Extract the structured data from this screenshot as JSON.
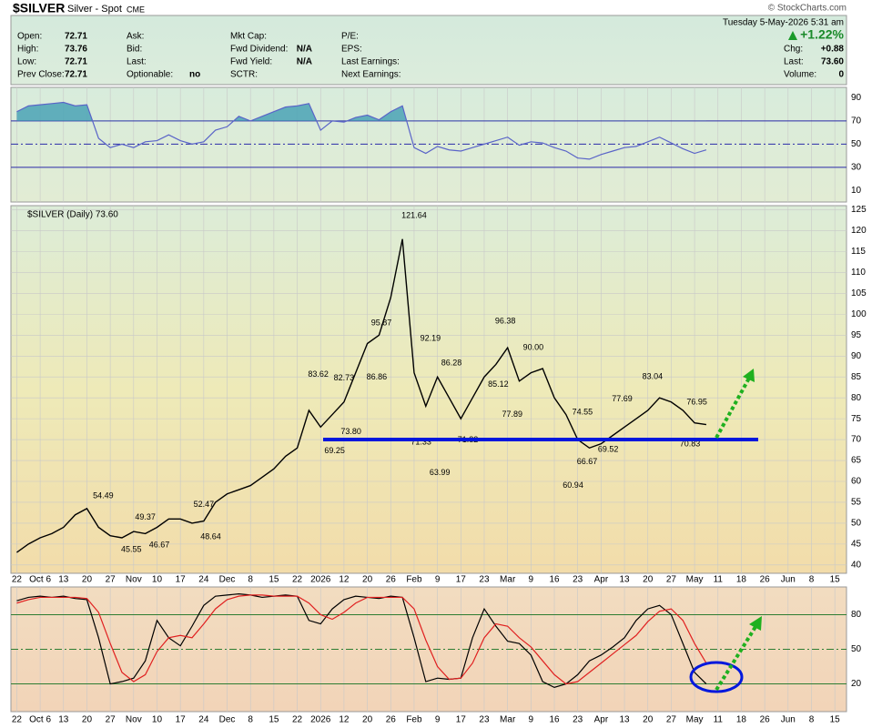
{
  "header": {
    "symbol": "$SILVER",
    "name": "Silver - Spot",
    "exchange": "CME",
    "date": "Tuesday  5-May-2026  5:31 am",
    "brand": "© StockCharts.com",
    "change_pct": "+1.22%",
    "columns": [
      [
        [
          "Open:",
          "72.71"
        ],
        [
          "High:",
          "73.76"
        ],
        [
          "Low:",
          "72.71"
        ],
        [
          "Prev Close:",
          "72.71"
        ]
      ],
      [
        [
          "Ask:",
          ""
        ],
        [
          "Bid:",
          ""
        ],
        [
          "Last:",
          ""
        ],
        [
          "Optionable:",
          "no"
        ]
      ],
      [
        [
          "Mkt Cap:",
          ""
        ],
        [
          "Fwd Dividend:",
          "N/A"
        ],
        [
          "Fwd Yield:",
          "N/A"
        ],
        [
          "SCTR:",
          ""
        ]
      ],
      [
        [
          "P/E:",
          ""
        ],
        [
          "EPS:",
          ""
        ],
        [
          "Last Earnings:",
          ""
        ],
        [
          "Next Earnings:",
          ""
        ]
      ],
      [
        [
          "",
          ""
        ],
        [
          "Chg:",
          "+0.88"
        ],
        [
          "Last:",
          "73.60"
        ],
        [
          "Volume:",
          "0"
        ]
      ]
    ]
  },
  "chart_data": [
    {
      "type": "line",
      "x": [
        0,
        0.5,
        1,
        1.5,
        2,
        2.5,
        3,
        3.5,
        4,
        4.5,
        5,
        5.5,
        6,
        6.5,
        7,
        7.5,
        8,
        8.5,
        9,
        9.5,
        10,
        10.5,
        11,
        11.5,
        12,
        12.5,
        13,
        13.5,
        14,
        14.5,
        15,
        15.5,
        16,
        16.5,
        17,
        17.5,
        18,
        18.5,
        19,
        19.5,
        20,
        20.5,
        21,
        21.5,
        22,
        22.5,
        23,
        23.5,
        24,
        24.5,
        25,
        25.5,
        26,
        26.5,
        27,
        27.5,
        28,
        28.5,
        29,
        29.5
      ],
      "series": [
        {
          "color": "#5a64c8",
          "values": [
            78,
            83,
            84,
            85,
            86,
            83,
            84,
            55,
            47,
            50,
            47,
            52,
            53,
            58,
            53,
            50,
            52,
            62,
            65,
            74,
            70,
            74,
            78,
            82,
            83,
            85,
            62,
            70,
            69,
            73,
            75,
            71,
            78,
            83,
            47,
            42,
            48,
            45,
            44,
            47,
            50,
            53,
            56,
            49,
            52,
            51,
            47,
            44,
            38,
            37,
            41,
            44,
            47,
            48,
            52,
            56,
            51,
            46,
            42,
            45
          ]
        }
      ],
      "ylim": [
        0,
        99
      ],
      "yticks": [
        10,
        30,
        50,
        70,
        90
      ],
      "hlines": [
        {
          "value": 70,
          "style": "solid"
        },
        {
          "value": 50,
          "style": "dashdot"
        },
        {
          "value": 30,
          "style": "solid"
        }
      ],
      "fill_above": 70,
      "fill_color": "#4aa3b5"
    },
    {
      "type": "line",
      "legend": "$SILVER (Daily) 73.60",
      "x": [
        0,
        0.5,
        1,
        1.5,
        2,
        2.5,
        3,
        3.5,
        4,
        4.5,
        5,
        5.5,
        6,
        6.5,
        7,
        7.5,
        8,
        8.5,
        9,
        9.5,
        10,
        10.5,
        11,
        11.5,
        12,
        12.5,
        13,
        13.5,
        14,
        14.5,
        15,
        15.5,
        16,
        16.5,
        17,
        17.5,
        18,
        18.5,
        19,
        19.5,
        20,
        20.5,
        21,
        21.5,
        22,
        22.5,
        23,
        23.5,
        24,
        24.5,
        25,
        25.5,
        26,
        26.5,
        27,
        27.5,
        28,
        28.5,
        29,
        29.5
      ],
      "series": [
        {
          "color": "#000000",
          "values": [
            43,
            45,
            46.5,
            47.5,
            49,
            52,
            53.5,
            49,
            47,
            46.5,
            48,
            47.5,
            49,
            51,
            51,
            50,
            50.5,
            55,
            57,
            58,
            59,
            61,
            63,
            66,
            68,
            77,
            73,
            76,
            79,
            86,
            93,
            95,
            104,
            118,
            86,
            78,
            85,
            80,
            75,
            80,
            85,
            88,
            92,
            84,
            86,
            87,
            80,
            76,
            70,
            68,
            69,
            71,
            73,
            75,
            77,
            80,
            79,
            77,
            74,
            73.6
          ]
        }
      ],
      "ylim": [
        38,
        126
      ],
      "yticks": [
        40,
        45,
        50,
        55,
        60,
        65,
        70,
        75,
        80,
        85,
        90,
        95,
        100,
        105,
        110,
        115,
        120,
        125
      ],
      "grid": true,
      "xlim": [
        -0.25,
        35.5
      ],
      "xticks": [
        {
          "value": 0,
          "label": "22"
        },
        {
          "value": 1,
          "label": "Oct 6"
        },
        {
          "value": 2,
          "label": "13"
        },
        {
          "value": 3,
          "label": "20"
        },
        {
          "value": 4,
          "label": "27"
        },
        {
          "value": 5,
          "label": "Nov"
        },
        {
          "value": 6,
          "label": "10"
        },
        {
          "value": 7,
          "label": "17"
        },
        {
          "value": 8,
          "label": "24"
        },
        {
          "value": 9,
          "label": "Dec"
        },
        {
          "value": 10,
          "label": "8"
        },
        {
          "value": 11,
          "label": "15"
        },
        {
          "value": 12,
          "label": "22"
        },
        {
          "value": 13,
          "label": "2026"
        },
        {
          "value": 14,
          "label": "12"
        },
        {
          "value": 15,
          "label": "20"
        },
        {
          "value": 16,
          "label": "26"
        },
        {
          "value": 17,
          "label": "Feb"
        },
        {
          "value": 18,
          "label": "9"
        },
        {
          "value": 19,
          "label": "17"
        },
        {
          "value": 20,
          "label": "23"
        },
        {
          "value": 21,
          "label": "Mar"
        },
        {
          "value": 22,
          "label": "9"
        },
        {
          "value": 23,
          "label": "16"
        },
        {
          "value": 24,
          "label": "23"
        },
        {
          "value": 25,
          "label": "Apr"
        },
        {
          "value": 26,
          "label": "13"
        },
        {
          "value": 27,
          "label": "20"
        },
        {
          "value": 28,
          "label": "27"
        },
        {
          "value": 29,
          "label": "May"
        },
        {
          "value": 30,
          "label": "11"
        },
        {
          "value": 31,
          "label": "18"
        },
        {
          "value": 32,
          "label": "26"
        },
        {
          "value": 33,
          "label": "Jun"
        },
        {
          "value": 34,
          "label": "8"
        },
        {
          "value": 35,
          "label": "15"
        }
      ],
      "annotations": [
        {
          "label": "54.49",
          "value": 54.49,
          "x": 3.7,
          "side": "top"
        },
        {
          "label": "49.37",
          "value": 49.37,
          "x": 5.5,
          "side": "top"
        },
        {
          "label": "45.55",
          "value": 45.55,
          "x": 4.9,
          "side": "bottom"
        },
        {
          "label": "46.67",
          "value": 46.67,
          "x": 6.1,
          "side": "bottom"
        },
        {
          "label": "52.47",
          "value": 52.47,
          "x": 8.0,
          "side": "top"
        },
        {
          "label": "48.64",
          "value": 48.64,
          "x": 8.3,
          "side": "bottom"
        },
        {
          "label": "83.62",
          "value": 83.62,
          "x": 12.9,
          "side": "top"
        },
        {
          "label": "82.73",
          "value": 82.73,
          "x": 14.0,
          "side": "top"
        },
        {
          "label": "73.80",
          "value": 73.8,
          "x": 14.3,
          "side": "bottom"
        },
        {
          "label": "69.25",
          "value": 69.25,
          "x": 13.6,
          "side": "bottom"
        },
        {
          "label": "86.86",
          "value": 86.86,
          "x": 15.4,
          "side": "bottom"
        },
        {
          "label": "95.87",
          "value": 95.87,
          "x": 15.6,
          "side": "top"
        },
        {
          "label": "121.64",
          "value": 121.64,
          "x": 17.0,
          "side": "top"
        },
        {
          "label": "92.19",
          "value": 92.19,
          "x": 17.7,
          "side": "top"
        },
        {
          "label": "71.33",
          "value": 71.33,
          "x": 17.3,
          "side": "bottom"
        },
        {
          "label": "63.99",
          "value": 63.99,
          "x": 18.1,
          "side": "bottom"
        },
        {
          "label": "86.28",
          "value": 86.28,
          "x": 18.6,
          "side": "top"
        },
        {
          "label": "71.82",
          "value": 71.82,
          "x": 19.3,
          "side": "bottom"
        },
        {
          "label": "85.12",
          "value": 85.12,
          "x": 20.6,
          "side": "bottom"
        },
        {
          "label": "96.38",
          "value": 96.38,
          "x": 20.9,
          "side": "top"
        },
        {
          "label": "77.89",
          "value": 77.89,
          "x": 21.2,
          "side": "bottom"
        },
        {
          "label": "90.00",
          "value": 90,
          "x": 22.1,
          "side": "top"
        },
        {
          "label": "74.55",
          "value": 74.55,
          "x": 24.2,
          "side": "top"
        },
        {
          "label": "66.67",
          "value": 66.67,
          "x": 24.4,
          "side": "bottom"
        },
        {
          "label": "60.94",
          "value": 60.94,
          "x": 23.8,
          "side": "bottom"
        },
        {
          "label": "69.52",
          "value": 69.52,
          "x": 25.3,
          "side": "bottom"
        },
        {
          "label": "77.69",
          "value": 77.69,
          "x": 25.9,
          "side": "top"
        },
        {
          "label": "83.04",
          "value": 83.04,
          "x": 27.2,
          "side": "top"
        },
        {
          "label": "76.95",
          "value": 76.95,
          "x": 29.1,
          "side": "top"
        },
        {
          "label": "70.83",
          "value": 70.83,
          "x": 28.8,
          "side": "bottom"
        }
      ]
    },
    {
      "type": "line",
      "x": [
        0,
        0.5,
        1,
        1.5,
        2,
        2.5,
        3,
        3.5,
        4,
        4.5,
        5,
        5.5,
        6,
        6.5,
        7,
        7.5,
        8,
        8.5,
        9,
        9.5,
        10,
        10.5,
        11,
        11.5,
        12,
        12.5,
        13,
        13.5,
        14,
        14.5,
        15,
        15.5,
        16,
        16.5,
        17,
        17.5,
        18,
        18.5,
        19,
        19.5,
        20,
        20.5,
        21,
        21.5,
        22,
        22.5,
        23,
        23.5,
        24,
        24.5,
        25,
        25.5,
        26,
        26.5,
        27,
        27.5,
        28,
        28.5,
        29,
        29.5
      ],
      "series": [
        {
          "color": "#000000",
          "values": [
            92,
            95,
            96,
            95,
            96,
            94,
            93,
            60,
            20,
            22,
            25,
            40,
            75,
            60,
            53,
            70,
            88,
            96,
            97,
            98,
            97,
            95,
            96,
            97,
            96,
            75,
            72,
            85,
            93,
            96,
            95,
            94,
            96,
            95,
            60,
            22,
            25,
            24,
            25,
            60,
            85,
            70,
            57,
            55,
            45,
            22,
            17,
            20,
            28,
            40,
            45,
            52,
            60,
            75,
            85,
            88,
            80,
            55,
            30,
            20
          ]
        },
        {
          "color": "#e02020",
          "values": [
            90,
            93,
            95,
            95,
            95,
            95,
            94,
            82,
            55,
            30,
            22,
            28,
            48,
            60,
            62,
            60,
            72,
            85,
            93,
            96,
            97,
            97,
            96,
            96,
            96,
            90,
            80,
            76,
            82,
            90,
            95,
            95,
            95,
            95,
            85,
            58,
            35,
            24,
            25,
            38,
            60,
            72,
            70,
            60,
            52,
            40,
            28,
            20,
            22,
            30,
            38,
            46,
            54,
            62,
            74,
            83,
            85,
            75,
            55,
            38
          ]
        }
      ],
      "ylim": [
        -4,
        104
      ],
      "yticks": [
        20,
        50,
        80
      ],
      "hlines": [
        {
          "value": 80,
          "style": "solid"
        },
        {
          "value": 50,
          "style": "dashdot"
        },
        {
          "value": 20,
          "style": "solid"
        }
      ],
      "xlim": [
        -0.25,
        35.5
      ],
      "xticks": [
        {
          "value": 0,
          "label": "22"
        },
        {
          "value": 1,
          "label": "Oct 6"
        },
        {
          "value": 2,
          "label": "13"
        },
        {
          "value": 3,
          "label": "20"
        },
        {
          "value": 4,
          "label": "27"
        },
        {
          "value": 5,
          "label": "Nov"
        },
        {
          "value": 6,
          "label": "10"
        },
        {
          "value": 7,
          "label": "17"
        },
        {
          "value": 8,
          "label": "24"
        },
        {
          "value": 9,
          "label": "Dec"
        },
        {
          "value": 10,
          "label": "8"
        },
        {
          "value": 11,
          "label": "15"
        },
        {
          "value": 12,
          "label": "22"
        },
        {
          "value": 13,
          "label": "2026"
        },
        {
          "value": 14,
          "label": "12"
        },
        {
          "value": 15,
          "label": "20"
        },
        {
          "value": 16,
          "label": "26"
        },
        {
          "value": 17,
          "label": "Feb"
        },
        {
          "value": 18,
          "label": "9"
        },
        {
          "value": 19,
          "label": "17"
        },
        {
          "value": 20,
          "label": "23"
        },
        {
          "value": 21,
          "label": "Mar"
        },
        {
          "value": 22,
          "label": "9"
        },
        {
          "value": 23,
          "label": "16"
        },
        {
          "value": 24,
          "label": "23"
        },
        {
          "value": 25,
          "label": "Apr"
        },
        {
          "value": 26,
          "label": "13"
        },
        {
          "value": 27,
          "label": "20"
        },
        {
          "value": 28,
          "label": "27"
        },
        {
          "value": 29,
          "label": "May"
        },
        {
          "value": 30,
          "label": "11"
        },
        {
          "value": 31,
          "label": "18"
        },
        {
          "value": 32,
          "label": "26"
        },
        {
          "value": 33,
          "label": "Jun"
        },
        {
          "value": 34,
          "label": "8"
        },
        {
          "value": 35,
          "label": "15"
        }
      ]
    }
  ]
}
